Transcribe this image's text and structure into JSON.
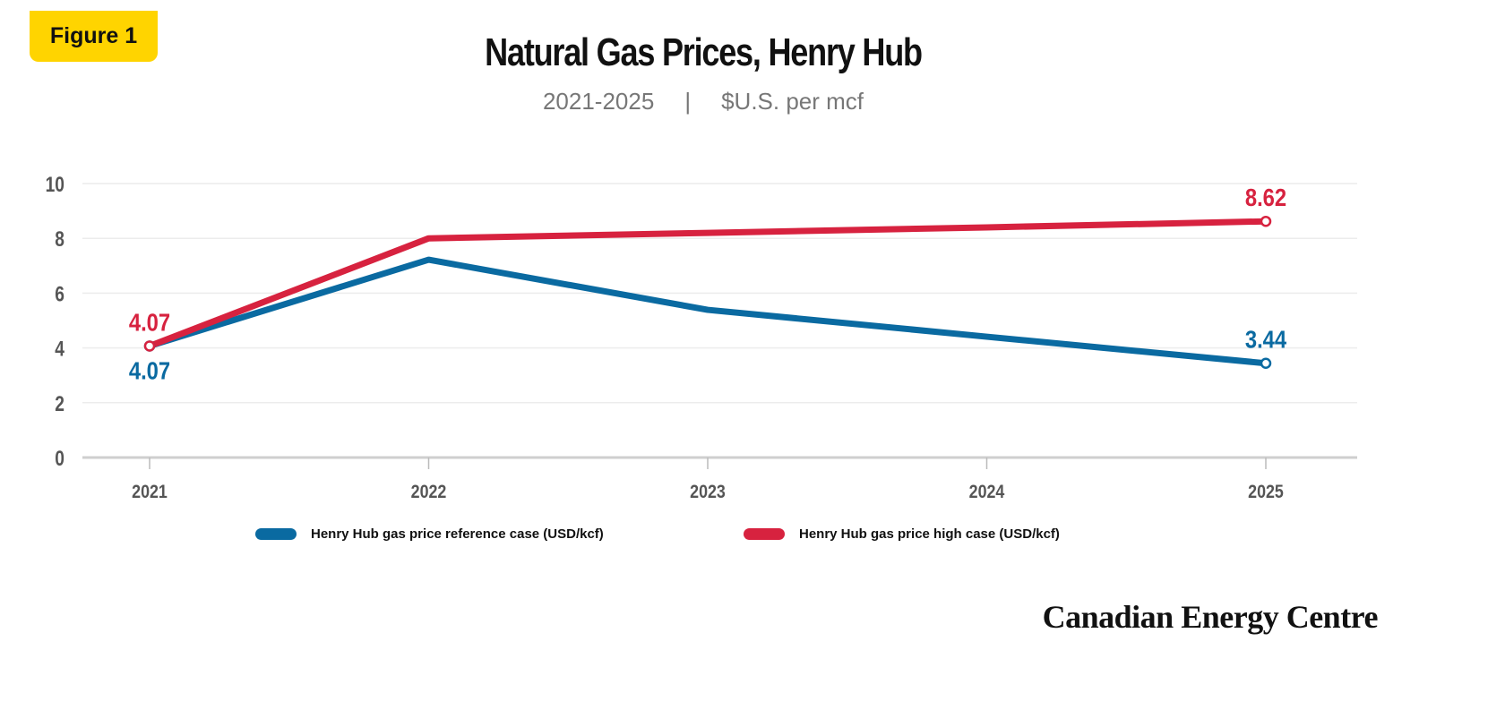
{
  "badge": "Figure 1",
  "subtitle": {
    "period": "2021-2025",
    "separator": "|",
    "unit": "$U.S. per mcf"
  },
  "brand": "Canadian Energy Centre",
  "chart_data": {
    "type": "line",
    "title": "Natural Gas Prices, Henry Hub",
    "x": [
      "2021",
      "2022",
      "2023",
      "2024",
      "2025"
    ],
    "ylim": [
      0,
      10
    ],
    "yticks": [
      0,
      2,
      4,
      6,
      8,
      10
    ],
    "grid": true,
    "legend_position": "bottom",
    "series": [
      {
        "name": "Henry Hub gas price reference case (USD/kcf)",
        "color": "#0a6aa1",
        "values": [
          4.07,
          7.22,
          5.39,
          4.41,
          3.44
        ],
        "labels": {
          "0": "4.07",
          "4": "3.44"
        }
      },
      {
        "name": "Henry Hub gas price high case (USD/kcf)",
        "color": "#d7223f",
        "values": [
          4.07,
          8.0,
          8.2,
          8.4,
          8.62
        ],
        "labels": {
          "0": "4.07",
          "4": "8.62"
        }
      }
    ]
  }
}
